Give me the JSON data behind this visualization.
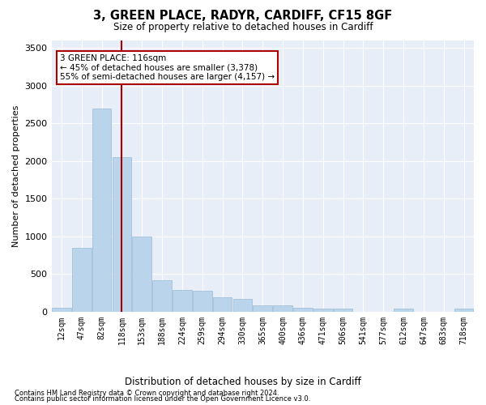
{
  "title": "3, GREEN PLACE, RADYR, CARDIFF, CF15 8GF",
  "subtitle": "Size of property relative to detached houses in Cardiff",
  "xlabel": "Distribution of detached houses by size in Cardiff",
  "ylabel": "Number of detached properties",
  "footnote1": "Contains HM Land Registry data © Crown copyright and database right 2024.",
  "footnote2": "Contains public sector information licensed under the Open Government Licence v3.0.",
  "annotation_title": "3 GREEN PLACE: 116sqm",
  "annotation_line1": "← 45% of detached houses are smaller (3,378)",
  "annotation_line2": "55% of semi-detached houses are larger (4,157) →",
  "property_size_idx": 3,
  "bar_color": "#bad4eb",
  "bar_edge_color": "#9abcd6",
  "vline_color": "#aa0000",
  "annotation_box_color": "#aa0000",
  "background_color": "#e8eef8",
  "ylim": [
    0,
    3600
  ],
  "categories": [
    "12sqm",
    "47sqm",
    "82sqm",
    "118sqm",
    "153sqm",
    "188sqm",
    "224sqm",
    "259sqm",
    "294sqm",
    "330sqm",
    "365sqm",
    "400sqm",
    "436sqm",
    "471sqm",
    "506sqm",
    "541sqm",
    "577sqm",
    "612sqm",
    "647sqm",
    "683sqm",
    "718sqm"
  ],
  "values": [
    50,
    850,
    2700,
    2050,
    1000,
    420,
    290,
    275,
    190,
    175,
    80,
    80,
    50,
    45,
    40,
    0,
    0,
    45,
    0,
    0,
    45
  ]
}
